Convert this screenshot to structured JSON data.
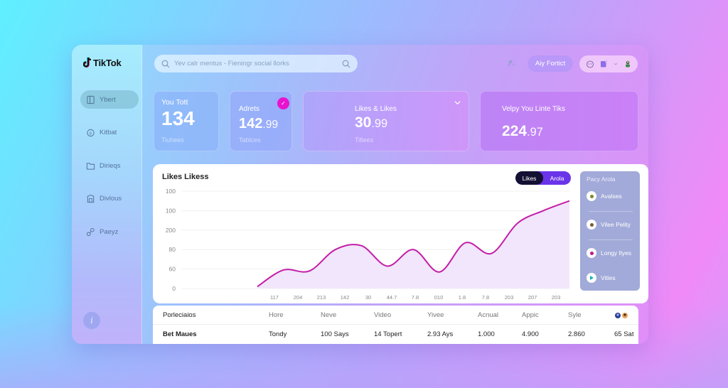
{
  "app": {
    "name": "TikTok"
  },
  "search": {
    "placeholder": "Yev calr mentus - Fieningr social llorks"
  },
  "header": {
    "primary_button": "Aiy Fortict",
    "icons": [
      "translate-icon",
      "profile-icon",
      "document-icon",
      "chevron-down-icon",
      "avatar-icon"
    ]
  },
  "sidebar": {
    "items": [
      {
        "label": "Ybert",
        "icon": "phone-icon",
        "active": true
      },
      {
        "label": "Kitbat",
        "icon": "coin-icon",
        "active": false
      },
      {
        "label": "Dirieqs",
        "icon": "folder-icon",
        "active": false
      },
      {
        "label": "Divlous",
        "icon": "building-icon",
        "active": false
      },
      {
        "label": "Paeyz",
        "icon": "key-icon",
        "active": false
      }
    ],
    "info_label": "i"
  },
  "cards": [
    {
      "title": "You Tott",
      "value_main": "134",
      "value_dec": "",
      "sub": "Tiuhees"
    },
    {
      "title": "Adrets",
      "value_main": "142",
      "value_dec": ".99",
      "sub": "Tablces",
      "badge": "✓"
    },
    {
      "title": "Likes & Likes",
      "value_main": "30",
      "value_dec": ".99",
      "sub": "Tifiees"
    },
    {
      "title": "Velpy You Linte Tiks",
      "value_main": "224",
      "value_dec": ".97",
      "sub": ""
    }
  ],
  "chart": {
    "title": "Likes Likess",
    "toggle": [
      "Likes",
      "Arola"
    ],
    "legend_title": "Pacy Arola",
    "legend": [
      {
        "label": "Avalses",
        "color": "#7a8a2a"
      },
      {
        "label": "Vilee Pelity",
        "color": "#7a5b3a"
      },
      {
        "label": "Longy Ilyes",
        "color": "#c2188f"
      },
      {
        "label": "Vities",
        "color": "#17b3a8"
      }
    ]
  },
  "chart_data": {
    "type": "line",
    "title": "Likes Likess",
    "xlabel": "",
    "ylabel": "",
    "y_tick_labels": [
      "0",
      "60",
      "80",
      "200",
      "100",
      "100"
    ],
    "categories": [
      "117",
      "204",
      "213",
      "142",
      "30",
      "44.7",
      "7.8",
      "010",
      "1.8",
      "7.8",
      "203",
      "207",
      "203"
    ],
    "series": [
      {
        "name": "Likes",
        "color": "#c41ea8",
        "fill": "#f1e6fb",
        "values_pct": [
          2,
          19,
          18,
          40,
          44,
          23,
          40,
          17,
          47,
          36,
          67,
          80,
          90
        ]
      }
    ],
    "grid": true,
    "legend_position": "right"
  },
  "table": {
    "headers": [
      "Porleciaios",
      "Hore",
      "Neve",
      "Video",
      "Yivee",
      "Acnual",
      "Appic",
      "Syle",
      ""
    ],
    "rows": [
      [
        "Bet Maues",
        "Tondy",
        "100 Says",
        "14 Topert",
        "2.93 Ays",
        "1.000",
        "4.900",
        "2.860",
        "65 Sat"
      ]
    ]
  }
}
